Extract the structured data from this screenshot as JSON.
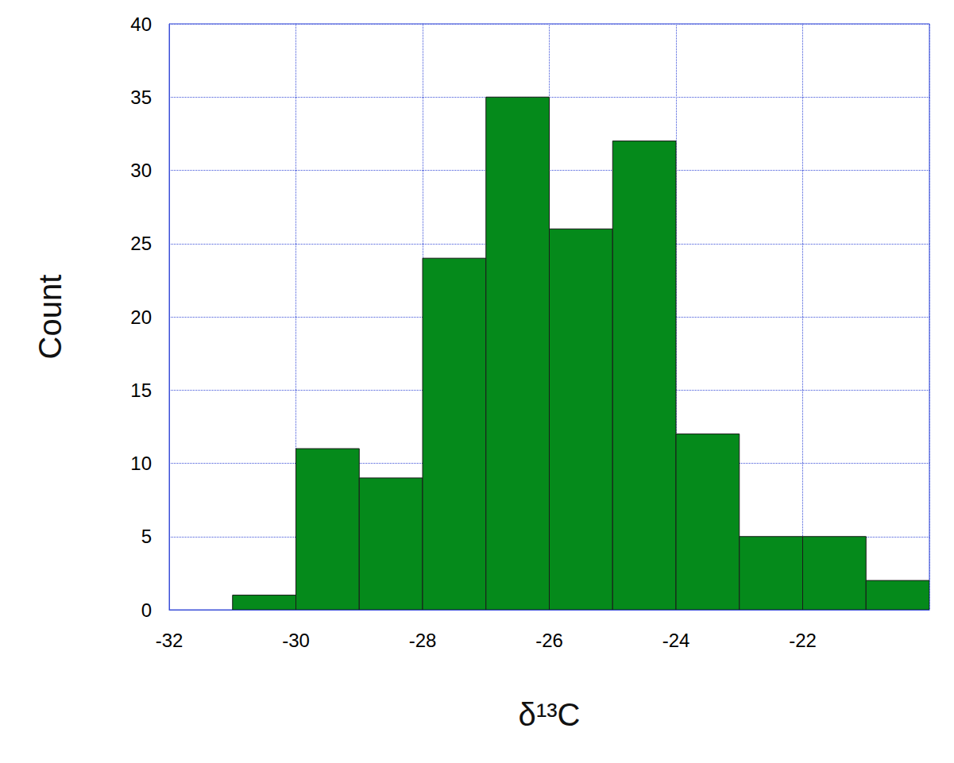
{
  "chart_data": {
    "type": "histogram",
    "x_label": "δ¹³C",
    "y_label": "Count",
    "bins": [
      -31,
      -30,
      -29,
      -28,
      -27,
      -26,
      -25,
      -24,
      -23,
      -22,
      -21,
      -20
    ],
    "values": [
      1,
      11,
      9,
      24,
      35,
      26,
      32,
      12,
      5,
      5,
      2
    ],
    "color": "#058a1b",
    "xlim": [
      -32,
      -20
    ],
    "xticks": [
      -32,
      -30,
      -28,
      -26,
      -24,
      -22
    ],
    "ylim": [
      0,
      40
    ],
    "yticks": [
      0,
      5,
      10,
      15,
      20,
      25,
      30,
      35,
      40
    ],
    "grid": true
  }
}
